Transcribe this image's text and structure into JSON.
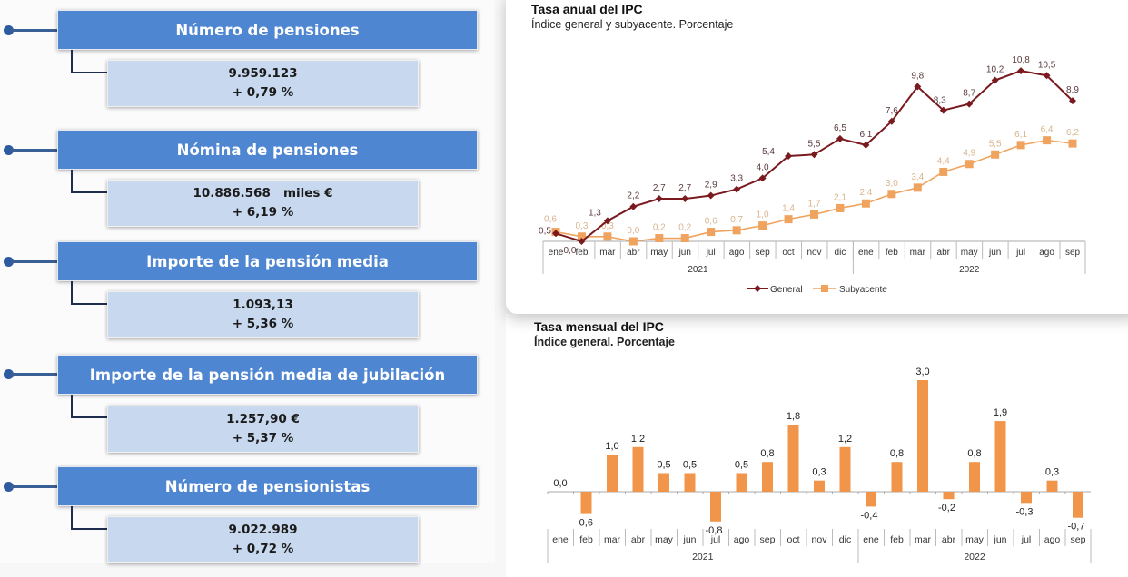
{
  "metrics": [
    {
      "title": "Número de pensiones",
      "value": "9.959.123",
      "change": "+ 0,79 %"
    },
    {
      "title": "Nómina de pensiones",
      "value": "10.886.568   miles €",
      "change": "+ 6,19 %"
    },
    {
      "title": "Importe de la pensión media",
      "value": "1.093,13",
      "change": "+ 5,36 %"
    },
    {
      "title": "Importe de la pensión media de jubilación",
      "value": "1.257,90 €",
      "change": "+ 5,37 %"
    },
    {
      "title": "Número de pensionistas",
      "value": "9.022.989",
      "change": "+ 0,72 %"
    }
  ],
  "colors": {
    "header_blue": "#4f86d1",
    "value_box": "#c7d8ef",
    "general": "#7a1a1f",
    "subyacente": "#f0a35e",
    "bar": "#f0954a"
  },
  "chart_data": [
    {
      "type": "line",
      "title": "Tasa anual del IPC",
      "subtitle": "Índice general y subyacente. Porcentaje",
      "categories": [
        "ene",
        "feb",
        "mar",
        "abr",
        "may",
        "jun",
        "jul",
        "ago",
        "sep",
        "oct",
        "nov",
        "dic",
        "ene",
        "feb",
        "mar",
        "abr",
        "may",
        "jun",
        "jul",
        "ago",
        "sep"
      ],
      "year_groups": [
        {
          "label": "2021",
          "span": 12
        },
        {
          "label": "2022",
          "span": 9
        }
      ],
      "series": [
        {
          "name": "General",
          "values": [
            0.5,
            0.0,
            1.3,
            2.2,
            2.7,
            2.7,
            2.9,
            3.3,
            4.0,
            5.4,
            5.5,
            6.5,
            6.1,
            7.6,
            9.8,
            8.3,
            8.7,
            10.2,
            10.8,
            10.5,
            8.9
          ]
        },
        {
          "name": "Subyacente",
          "values": [
            0.6,
            0.3,
            0.3,
            0.0,
            0.2,
            0.2,
            0.6,
            0.7,
            1.0,
            1.4,
            1.7,
            2.1,
            2.4,
            3.0,
            3.4,
            4.4,
            4.9,
            5.5,
            6.1,
            6.4,
            6.2
          ]
        }
      ],
      "labels": {
        "General": [
          "0,5",
          "0,0",
          "1,3",
          "2,2",
          "2,7",
          "2,7",
          "2,9",
          "3,3",
          "4,0",
          "5,4",
          "5,5",
          "6,5",
          "6,1",
          "7,6",
          "9,8",
          "8,3",
          "8,7",
          "10,2",
          "10,8",
          "10,5",
          "8,9"
        ],
        "Subyacente": [
          "0,6",
          "0,3",
          "0,3",
          "0,0",
          "0,2",
          "0,2",
          "0,6",
          "0,7",
          "1,0",
          "1,4",
          "1,7",
          "2,1",
          "2,4",
          "3,0",
          "3,4",
          "4,4",
          "4,9",
          "5,5",
          "6,1",
          "6,4",
          "6,2"
        ]
      },
      "legend": [
        "General",
        "Subyacente"
      ],
      "legend_position": "bottom",
      "grid": false,
      "ylim": [
        0,
        11
      ]
    },
    {
      "type": "bar",
      "title": "Tasa mensual del IPC",
      "subtitle": "Índice general. Porcentaje",
      "categories": [
        "ene",
        "feb",
        "mar",
        "abr",
        "may",
        "jun",
        "jul",
        "ago",
        "sep",
        "oct",
        "nov",
        "dic",
        "ene",
        "feb",
        "mar",
        "abr",
        "may",
        "jun",
        "jul",
        "ago",
        "sep"
      ],
      "year_groups": [
        {
          "label": "2021",
          "span": 12
        },
        {
          "label": "2022",
          "span": 9
        }
      ],
      "values": [
        0.0,
        -0.6,
        1.0,
        1.2,
        0.5,
        0.5,
        -0.8,
        0.5,
        0.8,
        1.8,
        0.3,
        1.2,
        -0.4,
        0.8,
        3.0,
        -0.2,
        0.8,
        1.9,
        -0.3,
        0.3,
        -0.7
      ],
      "labels": [
        "0,0",
        "-0,6",
        "1,0",
        "1,2",
        "0,5",
        "0,5",
        "-0,8",
        "0,5",
        "0,8",
        "1,8",
        "0,3",
        "1,2",
        "-0,4",
        "0,8",
        "3,0",
        "-0,2",
        "0,8",
        "1,9",
        "-0,3",
        "0,3",
        "-0,7"
      ],
      "grid": false,
      "ylim": [
        -1,
        3.2
      ]
    }
  ]
}
